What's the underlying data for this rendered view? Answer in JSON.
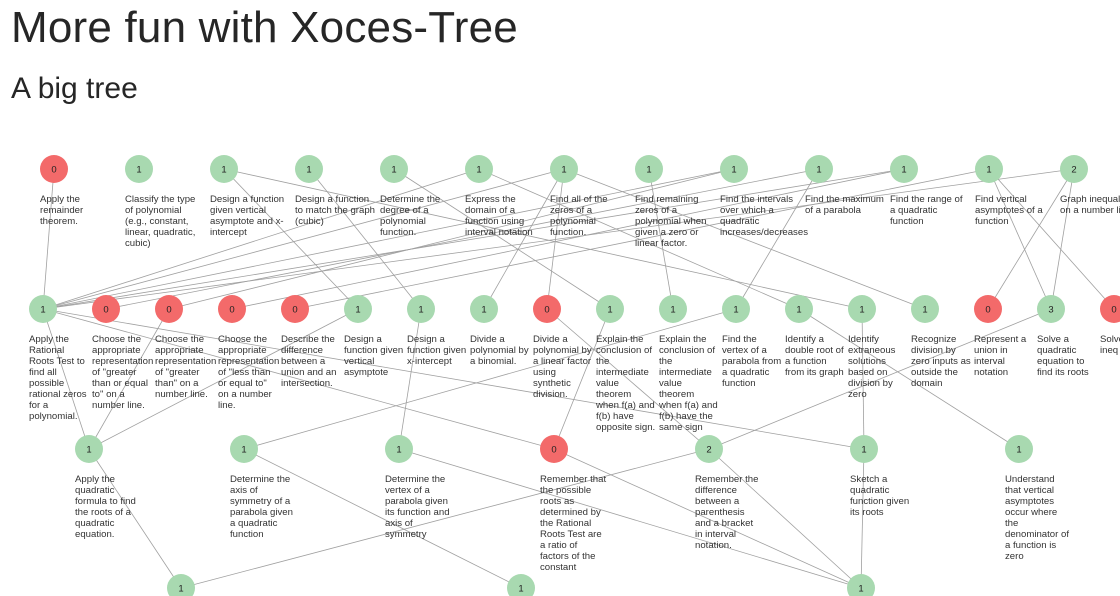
{
  "page": {
    "title": "More fun with Xoces-Tree",
    "subtitle": "A big tree"
  },
  "colors": {
    "mastered": "#a8d9b0",
    "unmastered": "#f36a6a",
    "edge": "#a0a0a0"
  },
  "tree": {
    "nodes": [
      {
        "id": "n1",
        "row": 0,
        "col": 0,
        "value": "0",
        "state": "unmastered",
        "label": "Apply the remainder theorem."
      },
      {
        "id": "n2",
        "row": 0,
        "col": 1,
        "value": "1",
        "state": "mastered",
        "label": "Classify the type of polynomial (e.g., constant, linear, quadratic, cubic)"
      },
      {
        "id": "n3",
        "row": 0,
        "col": 2,
        "value": "1",
        "state": "mastered",
        "label": "Design a function given vertical asymptote and x-intercept"
      },
      {
        "id": "n4",
        "row": 0,
        "col": 3,
        "value": "1",
        "state": "mastered",
        "label": "Design a function to match the graph (cubic)"
      },
      {
        "id": "n5",
        "row": 0,
        "col": 4,
        "value": "1",
        "state": "mastered",
        "label": "Determine the degree of a polynomial function."
      },
      {
        "id": "n6",
        "row": 0,
        "col": 5,
        "value": "1",
        "state": "mastered",
        "label": "Express the domain of a function using interval notation"
      },
      {
        "id": "n7",
        "row": 0,
        "col": 6,
        "value": "1",
        "state": "mastered",
        "label": "Find all of the zeros of a polynomial function."
      },
      {
        "id": "n8",
        "row": 0,
        "col": 7,
        "value": "1",
        "state": "mastered",
        "label": "Find remaining zeros of a polynomial when given a zero or linear factor."
      },
      {
        "id": "n9",
        "row": 0,
        "col": 8,
        "value": "1",
        "state": "mastered",
        "label": "Find the intervals over which a quadratic increases/decreases"
      },
      {
        "id": "n10",
        "row": 0,
        "col": 9,
        "value": "1",
        "state": "mastered",
        "label": "Find the maximum of a parabola"
      },
      {
        "id": "n11",
        "row": 0,
        "col": 10,
        "value": "1",
        "state": "mastered",
        "label": "Find the range of a quadratic function"
      },
      {
        "id": "n12",
        "row": 0,
        "col": 11,
        "value": "1",
        "state": "mastered",
        "label": "Find vertical asymptotes of a function"
      },
      {
        "id": "n13",
        "row": 0,
        "col": 12,
        "value": "2",
        "state": "mastered",
        "label": "Graph inequalities on a number line"
      },
      {
        "id": "m1",
        "row": 1,
        "col": 0,
        "value": "1",
        "state": "mastered",
        "label": "Apply the Rational Roots Test to find all possible rational zeros for a polynomial."
      },
      {
        "id": "m2",
        "row": 1,
        "col": 1,
        "value": "0",
        "state": "unmastered",
        "label": "Choose the appropriate representation of \"greater than or equal to\" on a number line."
      },
      {
        "id": "m3",
        "row": 1,
        "col": 2,
        "value": "0",
        "state": "unmastered",
        "label": "Choose the appropriate representation of \"greater than\" on a number line."
      },
      {
        "id": "m4",
        "row": 1,
        "col": 3,
        "value": "0",
        "state": "unmastered",
        "label": "Choose the appropriate representation of \"less than or equal to\" on a number line."
      },
      {
        "id": "m5",
        "row": 1,
        "col": 4,
        "value": "0",
        "state": "unmastered",
        "label": "Describe the difference between a union and an intersection."
      },
      {
        "id": "m6",
        "row": 1,
        "col": 5,
        "value": "1",
        "state": "mastered",
        "label": "Design a function given vertical asymptote"
      },
      {
        "id": "m7",
        "row": 1,
        "col": 6,
        "value": "1",
        "state": "mastered",
        "label": "Design a function given x-intercept"
      },
      {
        "id": "m8",
        "row": 1,
        "col": 7,
        "value": "1",
        "state": "mastered",
        "label": "Divide a polynomial by a binomial."
      },
      {
        "id": "m9",
        "row": 1,
        "col": 8,
        "value": "0",
        "state": "unmastered",
        "label": "Divide a polynomial by a linear factor using synthetic division."
      },
      {
        "id": "m10",
        "row": 1,
        "col": 9,
        "value": "1",
        "state": "mastered",
        "label": "Explain the conclusion of the intermediate value theorem when f(a) and f(b) have opposite sign."
      },
      {
        "id": "m11",
        "row": 1,
        "col": 10,
        "value": "1",
        "state": "mastered",
        "label": "Explain the conclusion of the intermediate value theorem when f(a) and f(b) have the same sign"
      },
      {
        "id": "m12",
        "row": 1,
        "col": 11,
        "value": "1",
        "state": "mastered",
        "label": "Find the vertex of a parabola from a quadratic function"
      },
      {
        "id": "m13",
        "row": 1,
        "col": 12,
        "value": "1",
        "state": "mastered",
        "label": "Identify a double root of a function from its graph"
      },
      {
        "id": "m14",
        "row": 1,
        "col": 13,
        "value": "1",
        "state": "mastered",
        "label": "Identify extraneous solutions based on division by zero"
      },
      {
        "id": "m15",
        "row": 1,
        "col": 14,
        "value": "1",
        "state": "mastered",
        "label": "Recognize division by zero inputs as outside the domain"
      },
      {
        "id": "m16",
        "row": 1,
        "col": 15,
        "value": "0",
        "state": "unmastered",
        "label": "Represent a union in interval notation"
      },
      {
        "id": "m17",
        "row": 1,
        "col": 16,
        "value": "3",
        "state": "mastered",
        "label": "Solve a quadratic equation to find its roots"
      },
      {
        "id": "m18",
        "row": 1,
        "col": 17,
        "value": "0",
        "state": "unmastered",
        "label": "Solve degr ineq"
      },
      {
        "id": "p1",
        "row": 2,
        "col": 0,
        "value": "1",
        "state": "mastered",
        "label": "Apply the quadratic formula to find the roots of a quadratic equation."
      },
      {
        "id": "p2",
        "row": 2,
        "col": 1,
        "value": "1",
        "state": "mastered",
        "label": "Determine the axis of symmetry of a parabola given a quadratic function"
      },
      {
        "id": "p3",
        "row": 2,
        "col": 2,
        "value": "1",
        "state": "mastered",
        "label": "Determine the vertex of a parabola given its function and axis of symmetry"
      },
      {
        "id": "p4",
        "row": 2,
        "col": 3,
        "value": "0",
        "state": "unmastered",
        "label": "Remember that the possible roots as determined by the Rational Roots Test are a ratio of factors of the constant"
      },
      {
        "id": "p5",
        "row": 2,
        "col": 4,
        "value": "2",
        "state": "mastered",
        "label": "Remember the difference between a parenthesis and a bracket in interval notation."
      },
      {
        "id": "p6",
        "row": 2,
        "col": 5,
        "value": "1",
        "state": "mastered",
        "label": "Sketch a quadratic function given its roots"
      },
      {
        "id": "p7",
        "row": 2,
        "col": 6,
        "value": "1",
        "state": "mastered",
        "label": "Understand that vertical asymptotes occur where the denominator of a function is zero"
      },
      {
        "id": "q1",
        "row": 3,
        "col": 0,
        "value": "1",
        "state": "mastered",
        "label": ""
      },
      {
        "id": "q2",
        "row": 3,
        "col": 1,
        "value": "1",
        "state": "mastered",
        "label": ""
      },
      {
        "id": "q3",
        "row": 3,
        "col": 2,
        "value": "1",
        "state": "mastered",
        "label": ""
      }
    ],
    "edges": [
      [
        "n1",
        "m1"
      ],
      [
        "n6",
        "m1"
      ],
      [
        "n7",
        "m1"
      ],
      [
        "n9",
        "m1"
      ],
      [
        "n11",
        "m1"
      ],
      [
        "n13",
        "m1"
      ],
      [
        "n10",
        "m2"
      ],
      [
        "n9",
        "m3"
      ],
      [
        "n11",
        "m4"
      ],
      [
        "n12",
        "m5"
      ],
      [
        "n3",
        "m6"
      ],
      [
        "n4",
        "m7"
      ],
      [
        "n7",
        "m8"
      ],
      [
        "n7",
        "m9"
      ],
      [
        "n5",
        "m10"
      ],
      [
        "n8",
        "m11"
      ],
      [
        "n10",
        "m12"
      ],
      [
        "n6",
        "m13"
      ],
      [
        "n3",
        "m14"
      ],
      [
        "n7",
        "m15"
      ],
      [
        "n13",
        "m16"
      ],
      [
        "n12",
        "m17"
      ],
      [
        "n12",
        "m18"
      ],
      [
        "n13",
        "m17"
      ],
      [
        "m1",
        "p1"
      ],
      [
        "m3",
        "p1"
      ],
      [
        "m6",
        "p1"
      ],
      [
        "m7",
        "p3"
      ],
      [
        "m12",
        "p2"
      ],
      [
        "m10",
        "p4"
      ],
      [
        "m1",
        "p4"
      ],
      [
        "m17",
        "p5"
      ],
      [
        "m9",
        "p5"
      ],
      [
        "m14",
        "p6"
      ],
      [
        "m1",
        "p6"
      ],
      [
        "m13",
        "p7"
      ],
      [
        "p1",
        "q1"
      ],
      [
        "p2",
        "q2"
      ],
      [
        "p4",
        "q3"
      ],
      [
        "p5",
        "q1"
      ],
      [
        "p5",
        "q3"
      ],
      [
        "p6",
        "q3"
      ],
      [
        "p3",
        "q3"
      ]
    ]
  }
}
